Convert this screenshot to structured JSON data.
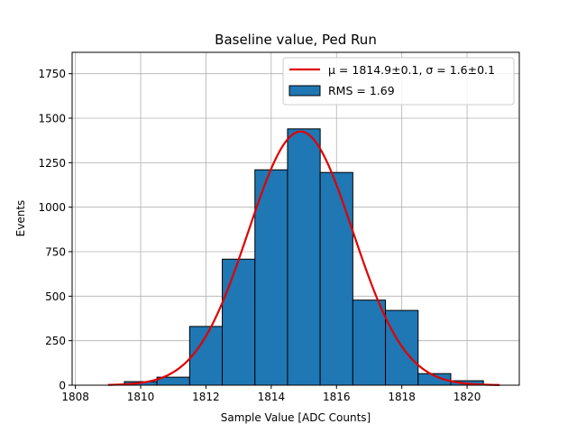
{
  "chart_data": {
    "type": "bar",
    "title": "Baseline value, Ped Run",
    "xlabel": "Sample Value [ADC Counts]",
    "ylabel": "Events",
    "xlim": [
      1807.9,
      1821.6
    ],
    "ylim": [
      0,
      1870
    ],
    "grid": true,
    "legend_position": "top-right",
    "xticks": [
      1808,
      1810,
      1812,
      1814,
      1816,
      1818,
      1820
    ],
    "yticks": [
      0,
      250,
      500,
      750,
      1000,
      1250,
      1500,
      1750
    ],
    "bin_edges": [
      1809.5,
      1810.5,
      1811.5,
      1812.5,
      1813.5,
      1814.5,
      1815.5,
      1816.5,
      1817.5,
      1818.5,
      1819.5,
      1820.5
    ],
    "counts": [
      20,
      45,
      330,
      708,
      1210,
      1440,
      1195,
      478,
      420,
      65,
      25
    ],
    "hist_color": "#1f77b4",
    "fit": {
      "label": "μ = 1814.9±0.1, σ = 1.6±0.1",
      "mu": 1814.9,
      "sigma": 1.6,
      "amplitude": 1425,
      "x_range": [
        1809,
        1821
      ],
      "color": "#e00000"
    },
    "legend": {
      "fit_label": "μ = 1814.9±0.1, σ = 1.6±0.1",
      "hist_label": "RMS = 1.69"
    }
  }
}
